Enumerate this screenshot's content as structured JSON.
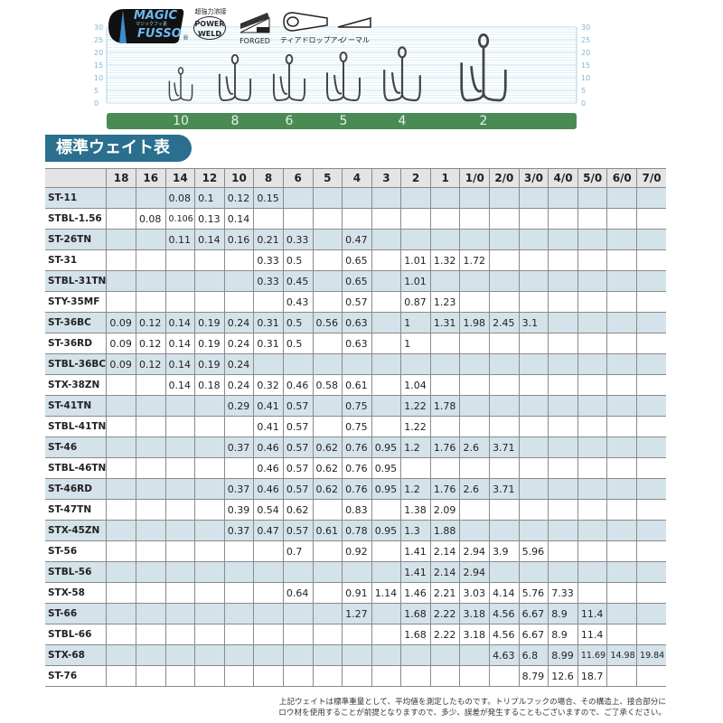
{
  "logos": {
    "magic_fusso": {
      "line1": "MAGIC",
      "line2": "FUSSO",
      "sub": "マジックフッ素",
      "mark": "®"
    },
    "power_weld": {
      "top": "超強力溶接",
      "line1": "POWER",
      "line2": "WELD"
    },
    "forged": "FORGED",
    "teardrop_eye": "ティアドロップアイ",
    "normal": "ノーマル"
  },
  "scale": {
    "ticks": [
      "0",
      "5",
      "10",
      "15",
      "20",
      "25",
      "30"
    ],
    "hook_sizes": [
      "10",
      "8",
      "6",
      "5",
      "4",
      "2"
    ],
    "bar_color": "#4a8a55"
  },
  "table_title": "標準ウェイト表",
  "table": {
    "columns": [
      "18",
      "16",
      "14",
      "12",
      "10",
      "8",
      "6",
      "5",
      "4",
      "3",
      "2",
      "1",
      "1/0",
      "2/0",
      "3/0",
      "4/0",
      "5/0",
      "6/0",
      "7/0"
    ],
    "rows": [
      {
        "model": "ST-11",
        "values": [
          "",
          "",
          "0.08",
          "0.1",
          "0.12",
          "0.15",
          "",
          "",
          "",
          "",
          "",
          "",
          "",
          "",
          "",
          "",
          "",
          "",
          ""
        ]
      },
      {
        "model": "STBL-1.56",
        "values": [
          "",
          "0.08",
          "0.106",
          "0.13",
          "0.14",
          "",
          "",
          "",
          "",
          "",
          "",
          "",
          "",
          "",
          "",
          "",
          "",
          "",
          ""
        ]
      },
      {
        "model": "ST-26TN",
        "values": [
          "",
          "",
          "0.11",
          "0.14",
          "0.16",
          "0.21",
          "0.33",
          "",
          "0.47",
          "",
          "",
          "",
          "",
          "",
          "",
          "",
          "",
          "",
          ""
        ]
      },
      {
        "model": "ST-31",
        "values": [
          "",
          "",
          "",
          "",
          "",
          "0.33",
          "0.5",
          "",
          "0.65",
          "",
          "1.01",
          "1.32",
          "1.72",
          "",
          "",
          "",
          "",
          "",
          ""
        ]
      },
      {
        "model": "STBL-31TN",
        "values": [
          "",
          "",
          "",
          "",
          "",
          "0.33",
          "0.45",
          "",
          "0.65",
          "",
          "1.01",
          "",
          "",
          "",
          "",
          "",
          "",
          "",
          ""
        ]
      },
      {
        "model": "STY-35MF",
        "values": [
          "",
          "",
          "",
          "",
          "",
          "",
          "0.43",
          "",
          "0.57",
          "",
          "0.87",
          "1.23",
          "",
          "",
          "",
          "",
          "",
          "",
          ""
        ]
      },
      {
        "model": "ST-36BC",
        "values": [
          "0.09",
          "0.12",
          "0.14",
          "0.19",
          "0.24",
          "0.31",
          "0.5",
          "0.56",
          "0.63",
          "",
          "1",
          "1.31",
          "1.98",
          "2.45",
          "3.1",
          "",
          "",
          "",
          ""
        ]
      },
      {
        "model": "ST-36RD",
        "values": [
          "0.09",
          "0.12",
          "0.14",
          "0.19",
          "0.24",
          "0.31",
          "0.5",
          "",
          "0.63",
          "",
          "1",
          "",
          "",
          "",
          "",
          "",
          "",
          "",
          ""
        ]
      },
      {
        "model": "STBL-36BC",
        "values": [
          "0.09",
          "0.12",
          "0.14",
          "0.19",
          "0.24",
          "",
          "",
          "",
          "",
          "",
          "",
          "",
          "",
          "",
          "",
          "",
          "",
          "",
          ""
        ]
      },
      {
        "model": "STX-38ZN",
        "values": [
          "",
          "",
          "0.14",
          "0.18",
          "0.24",
          "0.32",
          "0.46",
          "0.58",
          "0.61",
          "",
          "1.04",
          "",
          "",
          "",
          "",
          "",
          "",
          "",
          ""
        ]
      },
      {
        "model": "ST-41TN",
        "values": [
          "",
          "",
          "",
          "",
          "0.29",
          "0.41",
          "0.57",
          "",
          "0.75",
          "",
          "1.22",
          "1.78",
          "",
          "",
          "",
          "",
          "",
          "",
          ""
        ]
      },
      {
        "model": "STBL-41TN",
        "values": [
          "",
          "",
          "",
          "",
          "",
          "0.41",
          "0.57",
          "",
          "0.75",
          "",
          "1.22",
          "",
          "",
          "",
          "",
          "",
          "",
          "",
          ""
        ]
      },
      {
        "model": "ST-46",
        "values": [
          "",
          "",
          "",
          "",
          "0.37",
          "0.46",
          "0.57",
          "0.62",
          "0.76",
          "0.95",
          "1.2",
          "1.76",
          "2.6",
          "3.71",
          "",
          "",
          "",
          "",
          ""
        ]
      },
      {
        "model": "STBL-46TN",
        "values": [
          "",
          "",
          "",
          "",
          "",
          "0.46",
          "0.57",
          "0.62",
          "0.76",
          "0.95",
          "",
          "",
          "",
          "",
          "",
          "",
          "",
          "",
          ""
        ]
      },
      {
        "model": "ST-46RD",
        "values": [
          "",
          "",
          "",
          "",
          "0.37",
          "0.46",
          "0.57",
          "0.62",
          "0.76",
          "0.95",
          "1.2",
          "1.76",
          "2.6",
          "3.71",
          "",
          "",
          "",
          "",
          ""
        ]
      },
      {
        "model": "ST-47TN",
        "values": [
          "",
          "",
          "",
          "",
          "0.39",
          "0.54",
          "0.62",
          "",
          "0.83",
          "",
          "1.38",
          "2.09",
          "",
          "",
          "",
          "",
          "",
          "",
          ""
        ]
      },
      {
        "model": "STX-45ZN",
        "values": [
          "",
          "",
          "",
          "",
          "0.37",
          "0.47",
          "0.57",
          "0.61",
          "0.78",
          "0.95",
          "1.3",
          "1.88",
          "",
          "",
          "",
          "",
          "",
          "",
          ""
        ]
      },
      {
        "model": "ST-56",
        "values": [
          "",
          "",
          "",
          "",
          "",
          "",
          "0.7",
          "",
          "0.92",
          "",
          "1.41",
          "2.14",
          "2.94",
          "3.9",
          "5.96",
          "",
          "",
          "",
          ""
        ]
      },
      {
        "model": "STBL-56",
        "values": [
          "",
          "",
          "",
          "",
          "",
          "",
          "",
          "",
          "",
          "",
          "1.41",
          "2.14",
          "2.94",
          "",
          "",
          "",
          "",
          "",
          ""
        ]
      },
      {
        "model": "STX-58",
        "values": [
          "",
          "",
          "",
          "",
          "",
          "",
          "0.64",
          "",
          "0.91",
          "1.14",
          "1.46",
          "2.21",
          "3.03",
          "4.14",
          "5.76",
          "7.33",
          "",
          "",
          ""
        ]
      },
      {
        "model": "ST-66",
        "values": [
          "",
          "",
          "",
          "",
          "",
          "",
          "",
          "",
          "1.27",
          "",
          "1.68",
          "2.22",
          "3.18",
          "4.56",
          "6.67",
          "8.9",
          "11.4",
          "",
          ""
        ]
      },
      {
        "model": "STBL-66",
        "values": [
          "",
          "",
          "",
          "",
          "",
          "",
          "",
          "",
          "",
          "",
          "1.68",
          "2.22",
          "3.18",
          "4.56",
          "6.67",
          "8.9",
          "11.4",
          "",
          ""
        ]
      },
      {
        "model": "STX-68",
        "values": [
          "",
          "",
          "",
          "",
          "",
          "",
          "",
          "",
          "",
          "",
          "",
          "",
          "",
          "4.63",
          "6.8",
          "8.99",
          "11.69",
          "14.98",
          "19.84"
        ]
      },
      {
        "model": "ST-76",
        "values": [
          "",
          "",
          "",
          "",
          "",
          "",
          "",
          "",
          "",
          "",
          "",
          "",
          "",
          "",
          "8.79",
          "12.6",
          "18.7",
          "",
          ""
        ]
      }
    ]
  },
  "note": {
    "line1": "上記ウェイトは標準重量として、平均値を測定したものです。トリプルフックの場合、その構造上、接合部分に",
    "line2": "ロウ材を使用することが前提となりますので、多少、誤差が発生することもございますので、ご了承ください。"
  }
}
